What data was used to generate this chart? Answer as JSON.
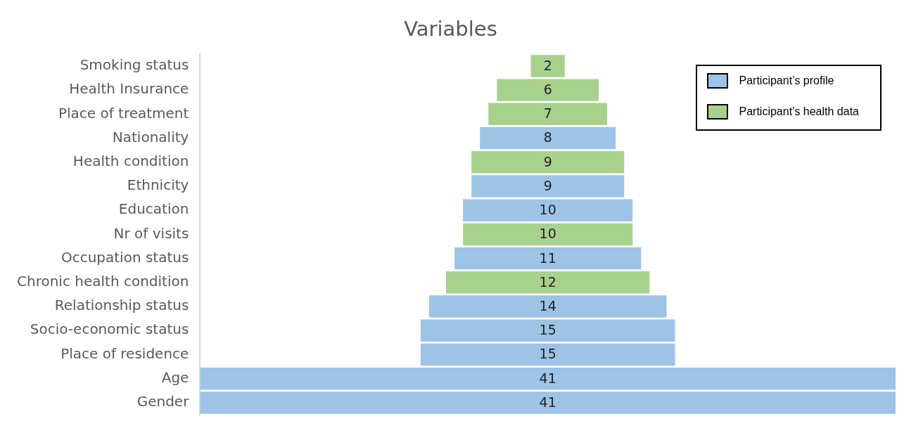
{
  "chart_data": {
    "type": "other",
    "title": "Variables",
    "categories": [
      "Smoking status",
      "Health Insurance",
      "Place of treatment",
      "Nationality",
      "Health condition",
      "Ethnicity",
      "Education",
      "Nr of visits",
      "Occupation status",
      "Chronic health condition",
      "Relationship status",
      "Socio-economic status",
      "Place of residence",
      "Age",
      "Gender"
    ],
    "series": [
      {
        "name": "Participant’s profile",
        "color": "#9dc3e6",
        "values": [
          null,
          null,
          null,
          8,
          null,
          9,
          10,
          null,
          11,
          null,
          14,
          15,
          15,
          41,
          41
        ]
      },
      {
        "name": "Participant’s health data",
        "color": "#a9d18e",
        "values": [
          2,
          6,
          7,
          null,
          9,
          null,
          null,
          10,
          null,
          12,
          null,
          null,
          null,
          null,
          null
        ]
      }
    ],
    "data_labels": true,
    "legend": "top right"
  }
}
